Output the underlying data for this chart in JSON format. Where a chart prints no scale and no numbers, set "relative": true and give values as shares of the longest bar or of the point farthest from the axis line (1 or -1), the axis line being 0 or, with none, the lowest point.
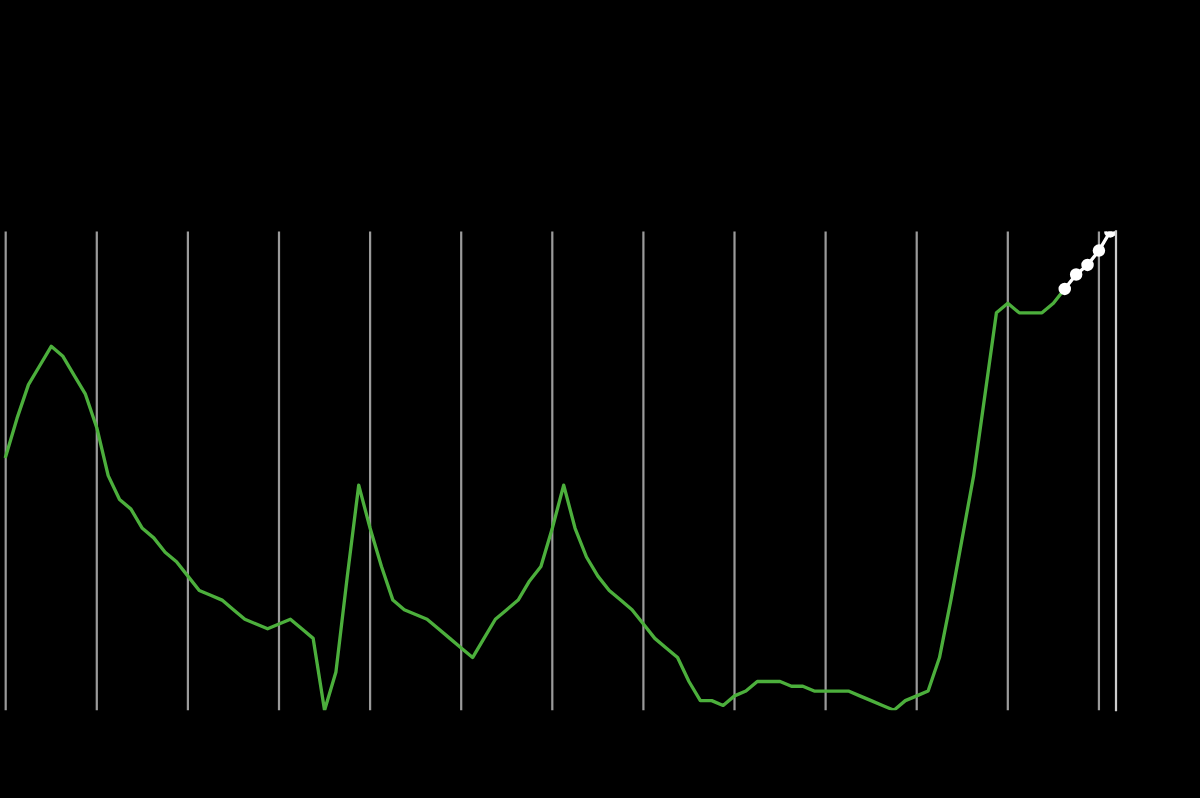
{
  "chart_data": {
    "type": "line",
    "relative": true,
    "grid": "x",
    "tick_labels": false,
    "legend": false,
    "categories": [
      null,
      null,
      null,
      null,
      null,
      null,
      null,
      null,
      null,
      null,
      null,
      null,
      null,
      null,
      null,
      null,
      null,
      null,
      null,
      null,
      null,
      null,
      null,
      null,
      null,
      null,
      null,
      null,
      null,
      null,
      null,
      null,
      null,
      null,
      null,
      null,
      null,
      null,
      null,
      null,
      null,
      null,
      null,
      null,
      null,
      null,
      null,
      null,
      null,
      null,
      null,
      null,
      null,
      null,
      null,
      null,
      null,
      null,
      null,
      null,
      null,
      null,
      null,
      null,
      null,
      null,
      null,
      null,
      null,
      null,
      null,
      null,
      null,
      null,
      null,
      null,
      null,
      null,
      null,
      null,
      null,
      null,
      null,
      null,
      null,
      null,
      null,
      null,
      null,
      null,
      null,
      null,
      null,
      null,
      null,
      null,
      null,
      null
    ],
    "series": [
      {
        "color": "#4caf3c",
        "marker": "none",
        "values": [
          0.53,
          0.61,
          0.68,
          0.72,
          0.76,
          0.74,
          0.7,
          0.66,
          0.59,
          0.49,
          0.44,
          0.42,
          0.38,
          0.36,
          0.33,
          0.31,
          0.28,
          0.25,
          0.24,
          0.23,
          0.21,
          0.19,
          0.18,
          0.17,
          0.18,
          0.19,
          0.17,
          0.15,
          0,
          0.08,
          0.28,
          0.47,
          0.38,
          0.3,
          0.23,
          0.21,
          0.2,
          0.19,
          0.17,
          0.15,
          0.13,
          0.11,
          0.15,
          0.19,
          0.21,
          0.23,
          0.27,
          0.3,
          0.38,
          0.47,
          0.38,
          0.32,
          0.28,
          0.25,
          0.23,
          0.21,
          0.18,
          0.15,
          0.13,
          0.11,
          0.06,
          0.02,
          0.02,
          0.01,
          0.03,
          0.04,
          0.06,
          0.06,
          0.06,
          0.05,
          0.05,
          0.04,
          0.04,
          0.04,
          0.04,
          0.03,
          0.02,
          0.01,
          0,
          0.02,
          0.03,
          0.04,
          0.11,
          0.23,
          0.36,
          0.49,
          0.66,
          0.83,
          0.85,
          0.83,
          0.83,
          0.83,
          0.85,
          0.88,
          null,
          null,
          null,
          null
        ]
      },
      {
        "color": "#ffffff",
        "marker": "circle",
        "values": [
          null,
          null,
          null,
          null,
          null,
          null,
          null,
          null,
          null,
          null,
          null,
          null,
          null,
          null,
          null,
          null,
          null,
          null,
          null,
          null,
          null,
          null,
          null,
          null,
          null,
          null,
          null,
          null,
          null,
          null,
          null,
          null,
          null,
          null,
          null,
          null,
          null,
          null,
          null,
          null,
          null,
          null,
          null,
          null,
          null,
          null,
          null,
          null,
          null,
          null,
          null,
          null,
          null,
          null,
          null,
          null,
          null,
          null,
          null,
          null,
          null,
          null,
          null,
          null,
          null,
          null,
          null,
          null,
          null,
          null,
          null,
          null,
          null,
          null,
          null,
          null,
          null,
          null,
          null,
          null,
          null,
          null,
          null,
          null,
          null,
          null,
          null,
          null,
          null,
          null,
          null,
          null,
          null,
          0.88,
          0.91,
          0.93,
          0.96,
          1.0
        ]
      }
    ]
  }
}
